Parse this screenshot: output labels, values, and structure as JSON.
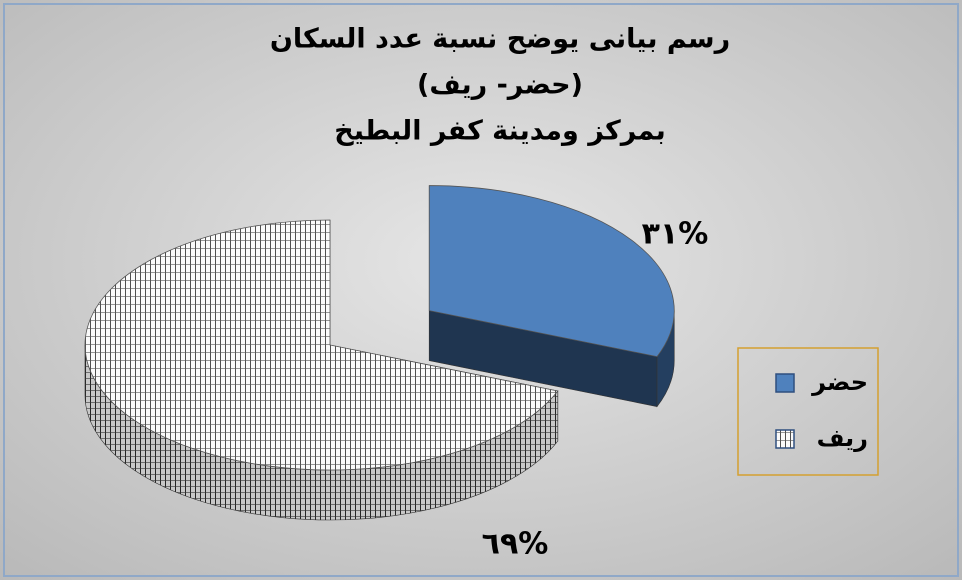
{
  "chart_data": {
    "type": "pie3d",
    "title": [
      "رسم بيانى يوضح نسبة عدد السكان",
      "(حضر- ريف)",
      "بمركز ومدينة كفر البطيخ"
    ],
    "categories": [
      "حضر",
      "ريف"
    ],
    "values": [
      31,
      69
    ],
    "value_labels": [
      "٣١%",
      "٦٩%"
    ],
    "colors": [
      "#4f81bd",
      "grid-pattern"
    ],
    "legend": "right",
    "exploded": [
      true,
      false
    ]
  }
}
